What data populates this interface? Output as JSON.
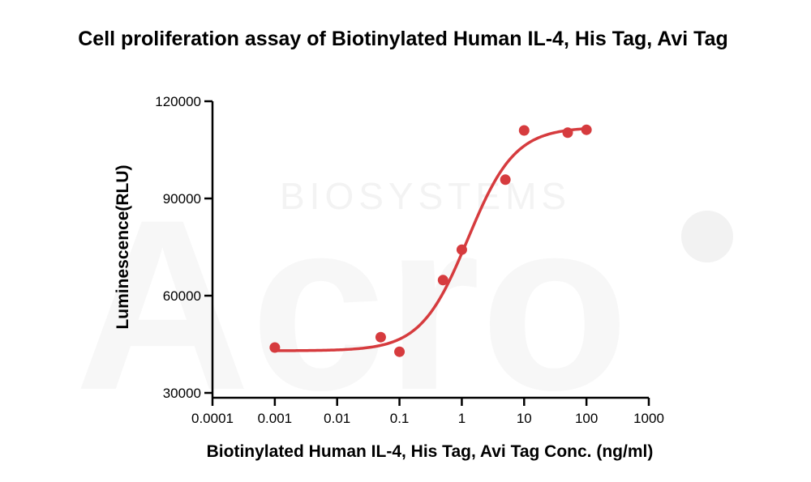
{
  "chart_data": {
    "type": "scatter",
    "title": "Cell proliferation assay of Biotinylated Human IL-4, His Tag, Avi Tag",
    "xlabel": "Biotinylated Human IL-4, His Tag, Avi Tag Conc. (ng/ml)",
    "ylabel": "Luminescence(RLU)",
    "x_scale": "log",
    "xlim": [
      0.0001,
      1000
    ],
    "ylim": [
      30000,
      120000
    ],
    "x_ticks": [
      "0.0001",
      "0.001",
      "0.01",
      "0.1",
      "1",
      "10",
      "100",
      "1000"
    ],
    "x_tick_values": [
      0.0001,
      0.001,
      0.01,
      0.1,
      1,
      10,
      100,
      1000
    ],
    "y_ticks": [
      "30000",
      "60000",
      "90000",
      "120000"
    ],
    "y_tick_values": [
      30000,
      60000,
      90000,
      120000
    ],
    "grid": false,
    "series": [
      {
        "color": "#d63b3e",
        "points": [
          {
            "x": 0.001,
            "y": 44000
          },
          {
            "x": 0.05,
            "y": 47200
          },
          {
            "x": 0.1,
            "y": 42700
          },
          {
            "x": 0.5,
            "y": 64800
          },
          {
            "x": 1,
            "y": 74200
          },
          {
            "x": 5,
            "y": 95800
          },
          {
            "x": 10,
            "y": 111000
          },
          {
            "x": 50,
            "y": 110300
          },
          {
            "x": 100,
            "y": 111200
          }
        ],
        "fit": {
          "model": "4PL",
          "bottom": 43000,
          "top": 112000,
          "ec50": 1.25,
          "hill": 1.15,
          "x_range": [
            0.001,
            100
          ]
        }
      }
    ],
    "watermark": {
      "logo_text": "Acro",
      "sub_text": "BIOSYSTEMS"
    }
  }
}
